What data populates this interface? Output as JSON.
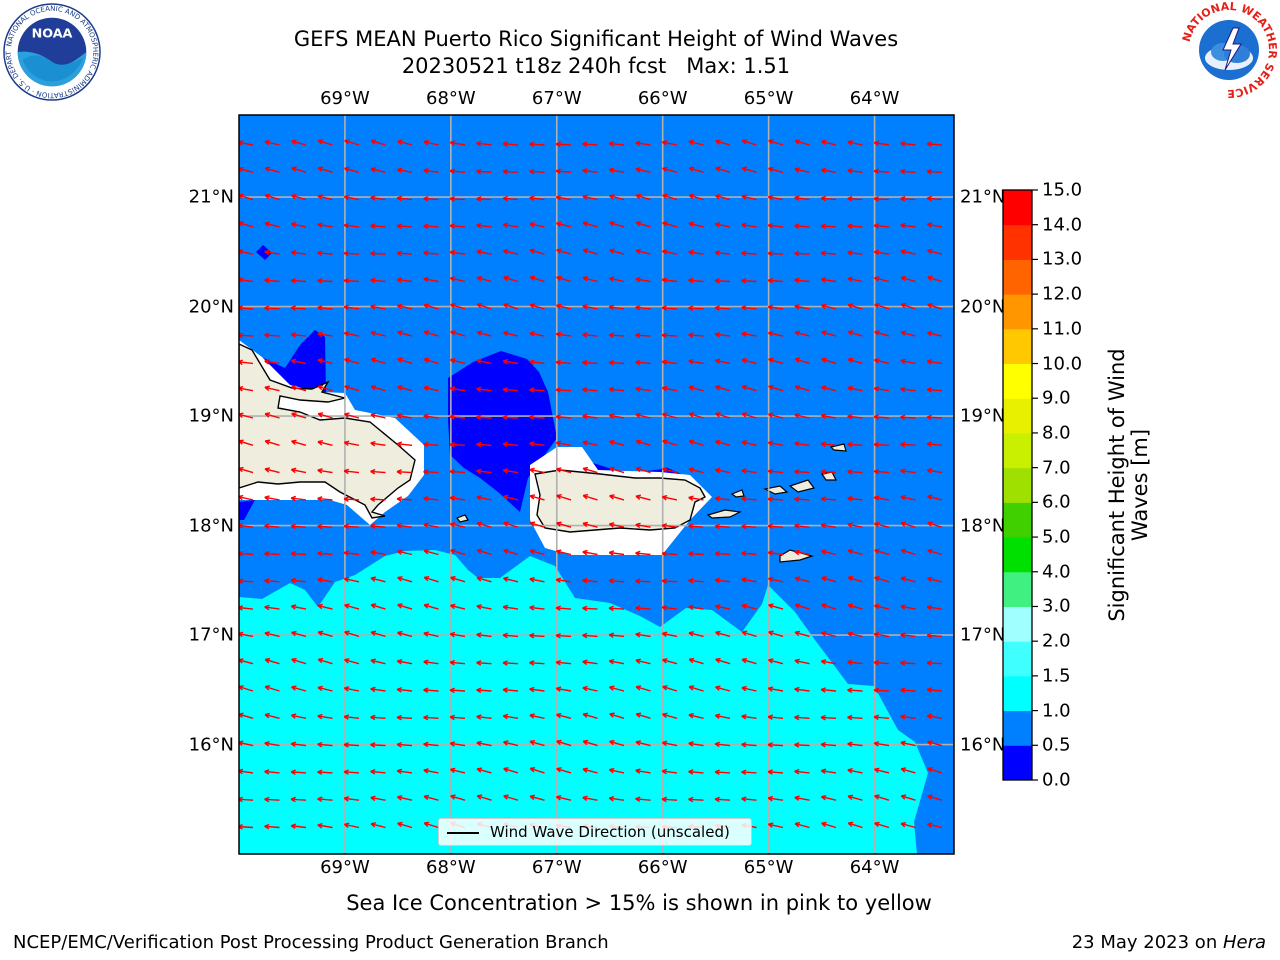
{
  "title": {
    "line1": "GEFS MEAN Puerto Rico Significant Height of Wind Waves",
    "line2": "20230521 t18z 240h fcst   Max: 1.51"
  },
  "map": {
    "lon_range": [
      -70,
      -63.25
    ],
    "lat_range": [
      15,
      21.75
    ],
    "lon_ticks": [
      "69°W",
      "68°W",
      "67°W",
      "66°W",
      "65°W",
      "64°W"
    ],
    "lat_ticks": [
      "21°N",
      "20°N",
      "19°N",
      "18°N",
      "17°N",
      "16°N"
    ],
    "land_color": "#efedde",
    "field_colors": {
      "level_0_0_5": "#0000ff",
      "level_0_5_1_0": "#0080ff",
      "level_1_0_1_5": "#00ffff"
    },
    "arrow_color": "#ff0000",
    "legend_label": "Wind Wave Direction (unscaled)"
  },
  "colorbar": {
    "label": "Significant Height of Wind Waves [m]",
    "label_line1": "Significant Height of Wind",
    "label_line2": "Waves [m]",
    "ticks": [
      "0.0",
      "0.5",
      "1.0",
      "1.5",
      "2.0",
      "3.0",
      "4.0",
      "5.0",
      "6.0",
      "7.0",
      "8.0",
      "9.0",
      "10.0",
      "11.0",
      "12.0",
      "13.0",
      "14.0",
      "15.0"
    ],
    "colors": [
      "#0000ff",
      "#0080ff",
      "#00ffff",
      "#40ffff",
      "#a0ffff",
      "#40f080",
      "#00e000",
      "#40d000",
      "#a0e000",
      "#c8f000",
      "#e8f000",
      "#ffff00",
      "#ffc800",
      "#ff9600",
      "#ff6400",
      "#ff3200",
      "#ff0000"
    ]
  },
  "subtitle": "Sea Ice Concentration > 15% is shown in pink to yellow",
  "footer": {
    "left": "NCEP/EMC/Verification Post Processing Product Generation Branch",
    "right_date": "23 May 2023 on ",
    "right_host": "Hera"
  },
  "logos": {
    "noaa_text": "NOAA",
    "noaa_ring": "NATIONAL OCEANIC AND ATMOSPHERIC ADMINISTRATION · U.S. DEPARTMENT OF COMMERCE",
    "nws_ring": "NATIONAL WEATHER SERVICE"
  }
}
